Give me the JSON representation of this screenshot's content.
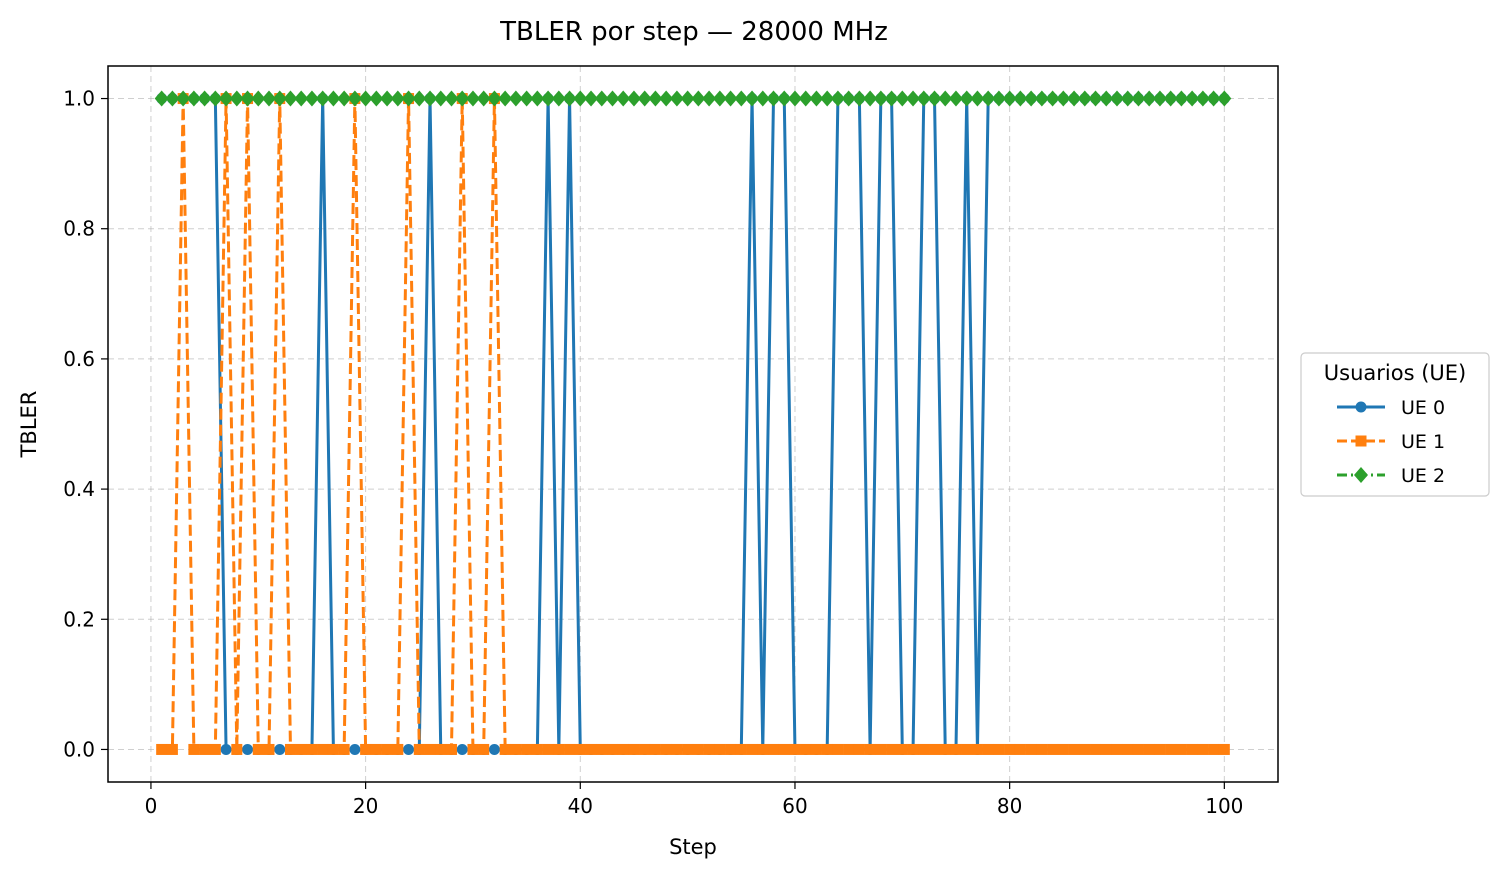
{
  "chart_data": {
    "type": "line",
    "title": "TBLER por step — 28000 MHz",
    "xlabel": "Step",
    "ylabel": "TBLER",
    "xlim": [
      -4,
      105
    ],
    "ylim": [
      -0.05,
      1.05
    ],
    "xticks": [
      0,
      20,
      40,
      60,
      80,
      100
    ],
    "yticks": [
      0.0,
      0.2,
      0.4,
      0.6,
      0.8,
      1.0
    ],
    "xtick_labels": [
      "0",
      "20",
      "40",
      "60",
      "80",
      "100"
    ],
    "ytick_labels": [
      "0.0",
      "0.2",
      "0.4",
      "0.6",
      "0.8",
      "1.0"
    ],
    "grid": true,
    "legend": {
      "title": "Usuarios (UE)",
      "placement": "right-outside"
    },
    "x": [
      1,
      2,
      3,
      4,
      5,
      6,
      7,
      8,
      9,
      10,
      11,
      12,
      13,
      14,
      15,
      16,
      17,
      18,
      19,
      20,
      21,
      22,
      23,
      24,
      25,
      26,
      27,
      28,
      29,
      30,
      31,
      32,
      33,
      34,
      35,
      36,
      37,
      38,
      39,
      40,
      41,
      42,
      43,
      44,
      45,
      46,
      47,
      48,
      49,
      50,
      51,
      52,
      53,
      54,
      55,
      56,
      57,
      58,
      59,
      60,
      61,
      62,
      63,
      64,
      65,
      66,
      67,
      68,
      69,
      70,
      71,
      72,
      73,
      74,
      75,
      76,
      77,
      78,
      79,
      80,
      81,
      82,
      83,
      84,
      85,
      86,
      87,
      88,
      89,
      90,
      91,
      92,
      93,
      94,
      95,
      96,
      97,
      98,
      99,
      100
    ],
    "series": [
      {
        "name": "UE 0",
        "color": "#1f77b4",
        "dash": "solid",
        "marker": "circle",
        "values": [
          1,
          1,
          1,
          1,
          1,
          1,
          0,
          0,
          0,
          0,
          0,
          0,
          0,
          0,
          0,
          1,
          0,
          0,
          0,
          0,
          0,
          0,
          0,
          0,
          0,
          1,
          0,
          0,
          0,
          0,
          0,
          0,
          0,
          0,
          0,
          0,
          1,
          0,
          1,
          0,
          0,
          0,
          0,
          0,
          0,
          0,
          0,
          0,
          0,
          0,
          0,
          0,
          0,
          0,
          0,
          1,
          0,
          1,
          1,
          0,
          0,
          0,
          0,
          1,
          1,
          1,
          0,
          1,
          1,
          0,
          0,
          1,
          1,
          0,
          0,
          1,
          0,
          1,
          1,
          1,
          1,
          1,
          1,
          1,
          1,
          1,
          1,
          1,
          1,
          1,
          1,
          1,
          1,
          1,
          1,
          1,
          1,
          1,
          1,
          1
        ]
      },
      {
        "name": "UE 1",
        "color": "#ff7f0e",
        "dash": "dashed",
        "marker": "square",
        "values": [
          0,
          0,
          1,
          0,
          0,
          0,
          1,
          0,
          1,
          0,
          0,
          1,
          0,
          0,
          0,
          0,
          0,
          0,
          1,
          0,
          0,
          0,
          0,
          1,
          0,
          0,
          0,
          0,
          1,
          0,
          0,
          1,
          0,
          0,
          0,
          0,
          0,
          0,
          0,
          0,
          0,
          0,
          0,
          0,
          0,
          0,
          0,
          0,
          0,
          0,
          0,
          0,
          0,
          0,
          0,
          0,
          0,
          0,
          0,
          0,
          0,
          0,
          0,
          0,
          0,
          0,
          0,
          0,
          0,
          0,
          0,
          0,
          0,
          0,
          0,
          0,
          0,
          0,
          0,
          0,
          0,
          0,
          0,
          0,
          0,
          0,
          0,
          0,
          0,
          0,
          0,
          0,
          0,
          0,
          0,
          0,
          0,
          0,
          0,
          0
        ]
      },
      {
        "name": "UE 2",
        "color": "#2ca02c",
        "dash": "dashdot",
        "marker": "diamond",
        "values": [
          1,
          1,
          1,
          1,
          1,
          1,
          1,
          1,
          1,
          1,
          1,
          1,
          1,
          1,
          1,
          1,
          1,
          1,
          1,
          1,
          1,
          1,
          1,
          1,
          1,
          1,
          1,
          1,
          1,
          1,
          1,
          1,
          1,
          1,
          1,
          1,
          1,
          1,
          1,
          1,
          1,
          1,
          1,
          1,
          1,
          1,
          1,
          1,
          1,
          1,
          1,
          1,
          1,
          1,
          1,
          1,
          1,
          1,
          1,
          1,
          1,
          1,
          1,
          1,
          1,
          1,
          1,
          1,
          1,
          1,
          1,
          1,
          1,
          1,
          1,
          1,
          1,
          1,
          1,
          1,
          1,
          1,
          1,
          1,
          1,
          1,
          1,
          1,
          1,
          1,
          1,
          1,
          1,
          1,
          1,
          1,
          1,
          1,
          1,
          1
        ]
      }
    ]
  }
}
